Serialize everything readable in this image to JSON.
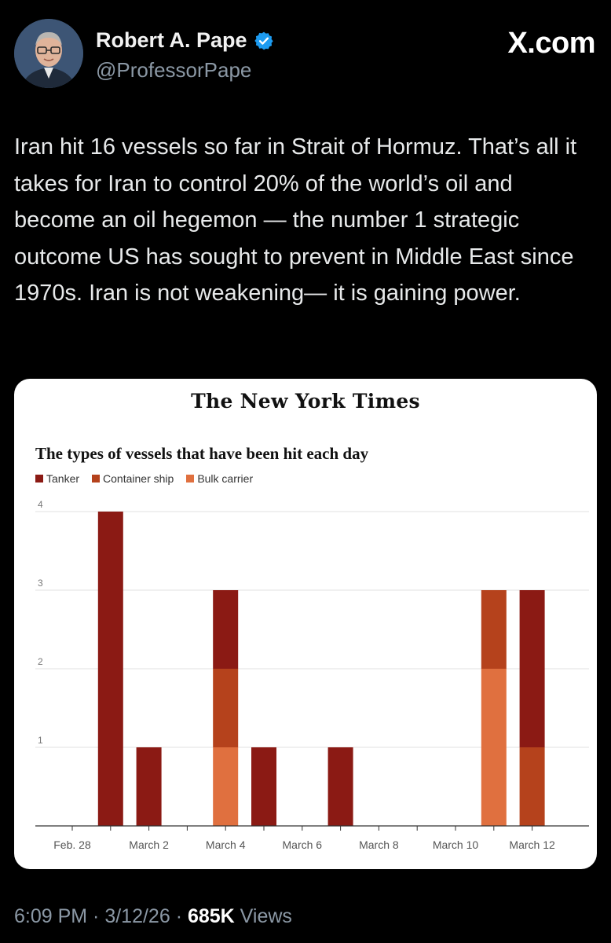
{
  "tweet": {
    "author_name": "Robert A. Pape",
    "handle": "@ProfessorPape",
    "site": "X.com",
    "text": "Iran hit 16 vessels so far in Strait of Hormuz. That’s all it takes for Iran to control 20% of the world’s oil and become an oil hegemon — the number 1 strategic outcome US has sought to prevent in Middle East since 1970s. Iran is not weakening— it is gaining power.",
    "time": "6:09 PM",
    "date": "3/12/26",
    "separator": " · ",
    "views_count": "685K",
    "views_label": " Views",
    "verified_color": "#1d9bf0"
  },
  "card": {
    "masthead": "The New York Times",
    "chart_title": "The types of vessels that have been hit each day"
  },
  "chart_data": {
    "type": "bar",
    "stacked": true,
    "title": "The types of vessels that have been hit each day",
    "xlabel": "",
    "ylabel": "",
    "ylim": [
      0,
      4
    ],
    "yticks": [
      1,
      2,
      3,
      4
    ],
    "days": [
      "Feb. 28",
      "March 1",
      "March 2",
      "March 3",
      "March 4",
      "March 5",
      "March 6",
      "March 7",
      "March 8",
      "March 9",
      "March 10",
      "March 11",
      "March 12"
    ],
    "xtick_labels": [
      "Feb. 28",
      "March 2",
      "March 4",
      "March 6",
      "March 8",
      "March 10",
      "March 12"
    ],
    "series": [
      {
        "name": "Tanker",
        "color": "#8b1a14",
        "values": [
          0,
          4,
          1,
          0,
          1,
          1,
          0,
          1,
          0,
          0,
          0,
          0,
          2
        ]
      },
      {
        "name": "Container ship",
        "color": "#b5421c",
        "values": [
          0,
          0,
          0,
          0,
          1,
          0,
          0,
          0,
          0,
          0,
          0,
          1,
          1
        ]
      },
      {
        "name": "Bulk carrier",
        "color": "#e0703f",
        "values": [
          0,
          0,
          0,
          0,
          1,
          0,
          0,
          0,
          0,
          0,
          0,
          2,
          0
        ]
      }
    ],
    "stack_order": [
      "Bulk carrier",
      "Container ship",
      "Tanker"
    ],
    "grid": true,
    "legend": "top-left"
  }
}
